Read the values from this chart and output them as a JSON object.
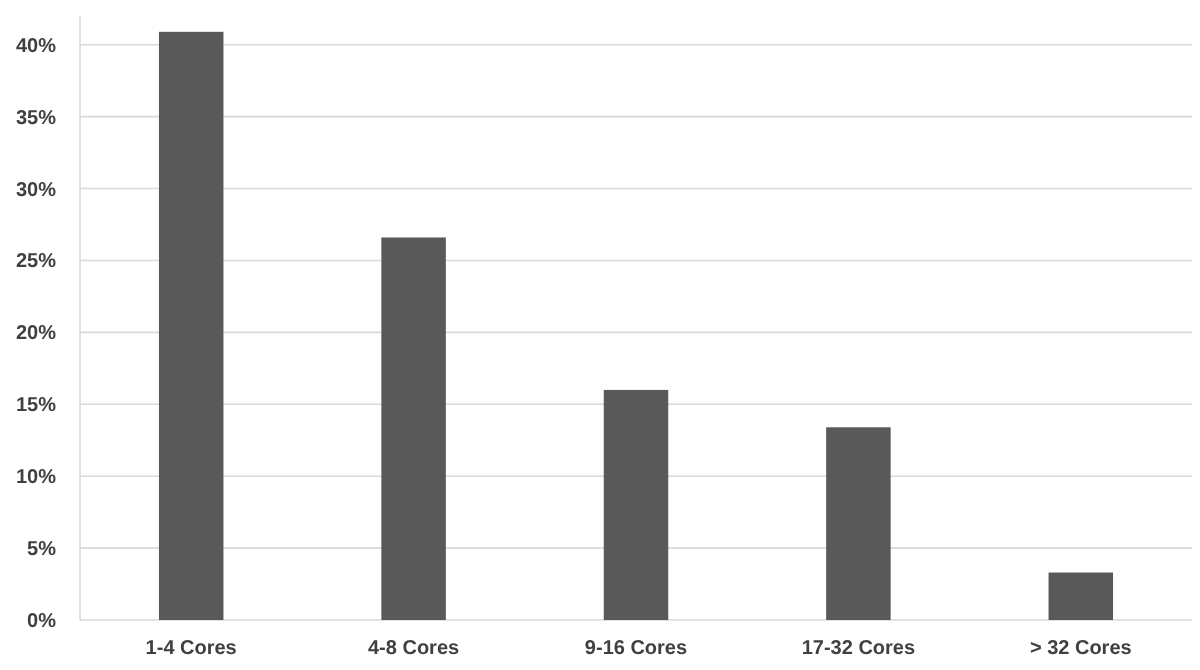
{
  "chart_data": {
    "type": "bar",
    "categories": [
      "1-4 Cores",
      "4-8 Cores",
      "9-16 Cores",
      "17-32 Cores",
      "> 32 Cores"
    ],
    "values": [
      40.9,
      26.6,
      16.0,
      13.4,
      3.3
    ],
    "color": "#595959",
    "ylim": [
      0,
      42
    ],
    "yticks": [
      {
        "value": 0,
        "label": "0%"
      },
      {
        "value": 5,
        "label": "5%"
      },
      {
        "value": 10,
        "label": "10%"
      },
      {
        "value": 15,
        "label": "15%"
      },
      {
        "value": 20,
        "label": "20%"
      },
      {
        "value": 25,
        "label": "25%"
      },
      {
        "value": 30,
        "label": "30%"
      },
      {
        "value": 35,
        "label": "35%"
      },
      {
        "value": 40,
        "label": "40%"
      }
    ],
    "grid": "y"
  }
}
